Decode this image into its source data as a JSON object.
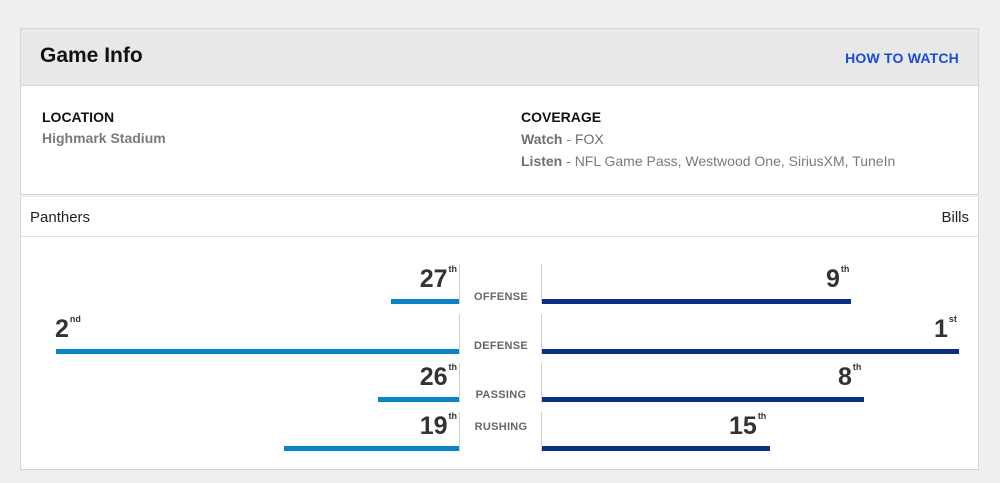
{
  "game_info": {
    "title": "Game Info",
    "how_to_watch": "HOW TO WATCH",
    "location": {
      "heading": "LOCATION",
      "value": "Highmark Stadium"
    },
    "coverage": {
      "heading": "COVERAGE",
      "watch_label": "Watch",
      "watch_value": "FOX",
      "listen_label": "Listen",
      "listen_value": "NFL Game Pass, Westwood One, SiriusXM, TuneIn"
    }
  },
  "matchup": {
    "away_team": "Panthers",
    "home_team": "Bills",
    "colors": {
      "away": "#0a84c6",
      "home": "#0c2f86"
    },
    "categories": [
      {
        "label": "OFFENSE",
        "away_rank": "27",
        "away_suffix": "th",
        "home_rank": "9",
        "home_suffix": "th"
      },
      {
        "label": "DEFENSE",
        "away_rank": "2",
        "away_suffix": "nd",
        "home_rank": "1",
        "home_suffix": "st"
      },
      {
        "label": "PASSING",
        "away_rank": "26",
        "away_suffix": "th",
        "home_rank": "8",
        "home_suffix": "th"
      },
      {
        "label": "RUSHING",
        "away_rank": "19",
        "away_suffix": "th",
        "home_rank": "15",
        "home_suffix": "th"
      }
    ]
  }
}
